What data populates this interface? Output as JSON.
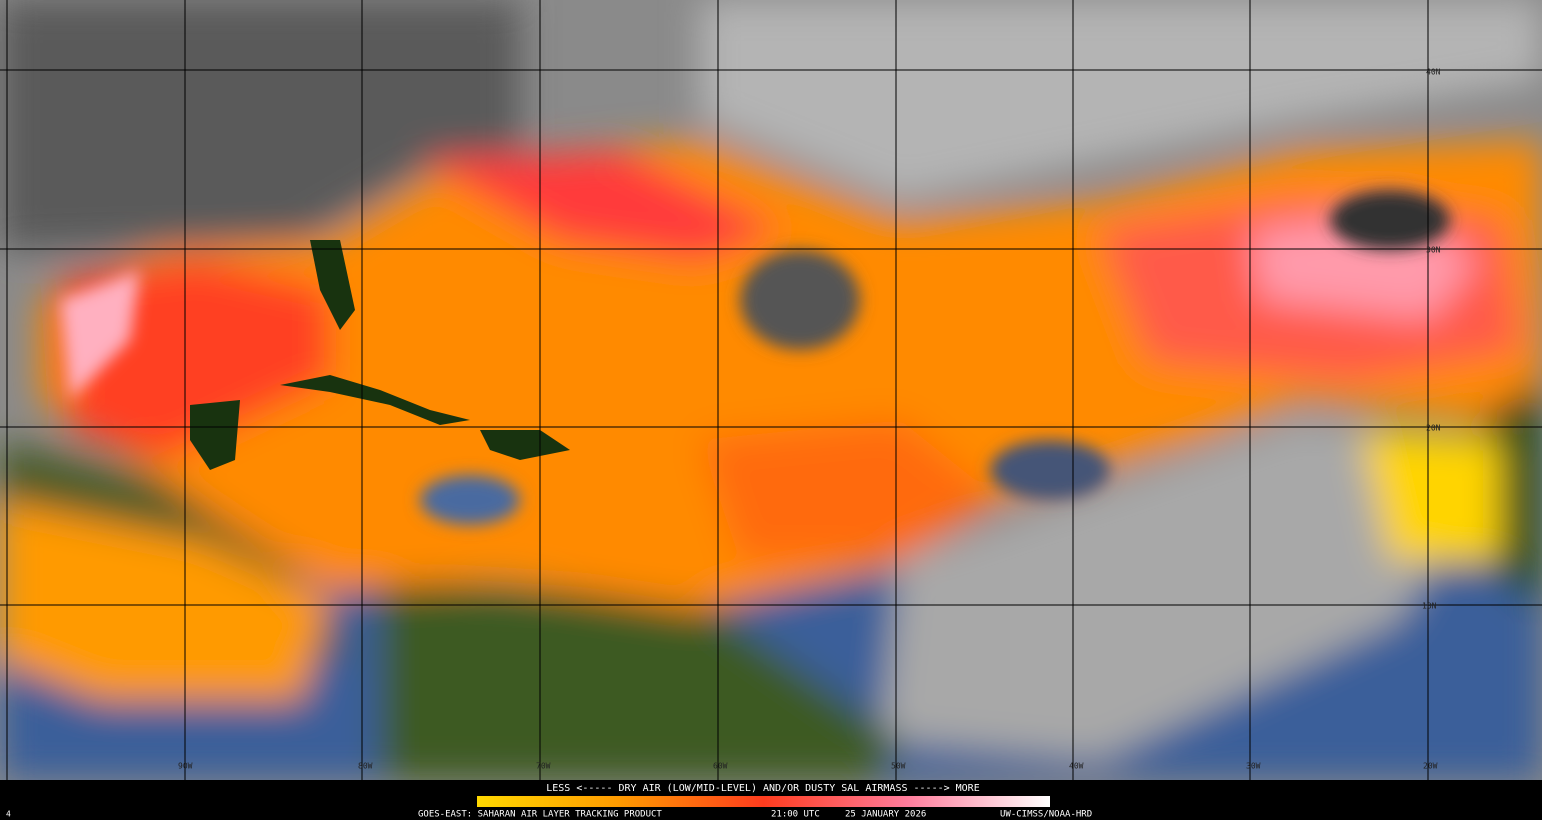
{
  "map": {
    "lat_labels": [
      "40N",
      "30N",
      "20N",
      "10N"
    ],
    "lon_labels": [
      "90W",
      "80W",
      "70W",
      "60W",
      "50W",
      "40W",
      "30W",
      "20W"
    ]
  },
  "legend": {
    "text": "LESS <----- DRY AIR (LOW/MID-LEVEL) AND/OR DUSTY SAL AIRMASS -----> MORE"
  },
  "footer": {
    "corner": "4",
    "product": "GOES-EAST: SAHARAN AIR LAYER TRACKING PRODUCT",
    "time": "21:00 UTC",
    "date": "25 JANUARY 2026",
    "credit": "UW-CIMSS/NOAA-HRD"
  }
}
